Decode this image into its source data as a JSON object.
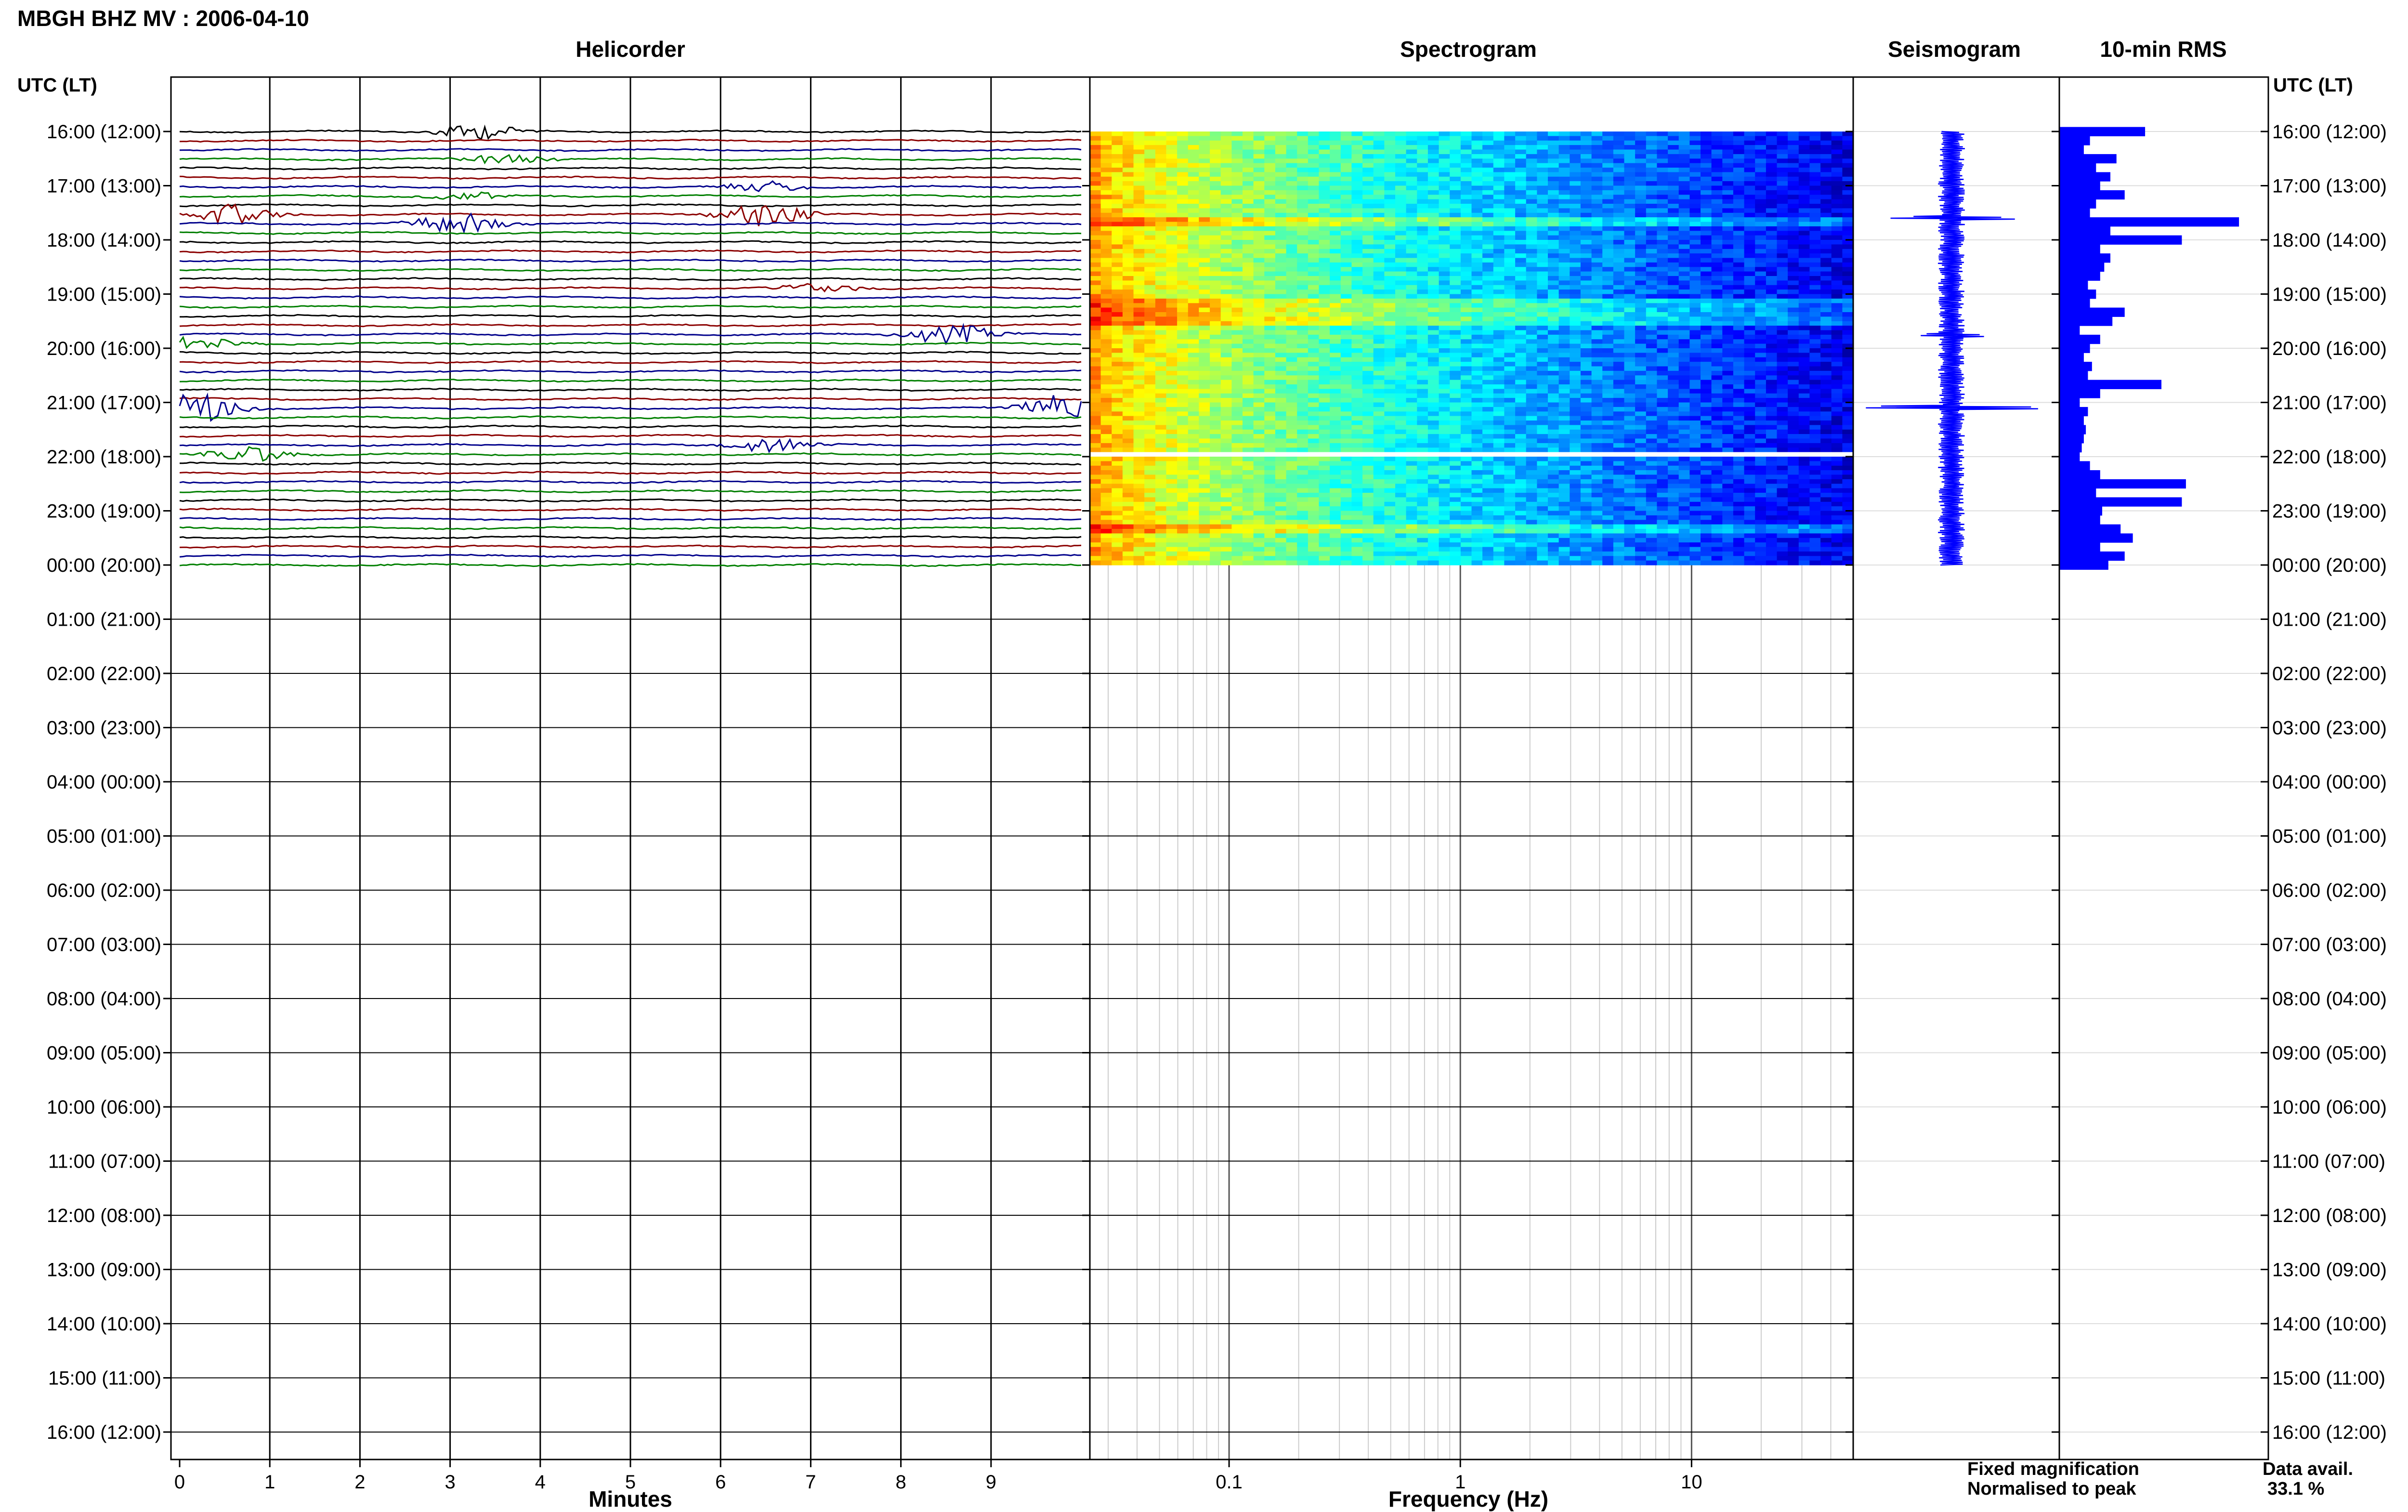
{
  "header": {
    "station_title": "MBGH BHZ MV : 2006-04-10",
    "left_axis_title": "UTC (LT)",
    "right_axis_title": "UTC (LT)"
  },
  "panels": {
    "helicorder_title": "Helicorder",
    "spectrogram_title": "Spectrogram",
    "seismogram_title": "Seismogram",
    "rms_title": "10-min RMS"
  },
  "footer": {
    "fixed_magnification": "Fixed magnification",
    "normalised_to_peak": "Normalised to peak",
    "data_avail_label": "Data avail.",
    "data_avail_value": "33.1 %"
  },
  "colors": {
    "series": [
      "#000000",
      "#8b0000",
      "#00008b",
      "#007f00"
    ],
    "rms_bar": "#0000ff",
    "seismogram_trace": "#0000ff",
    "fixed_magnification": "#0000ff",
    "normalised_to_peak": "#ff0000"
  },
  "chart_data": [
    {
      "type": "line",
      "panel": "helicorder",
      "xlabel": "Minutes",
      "x_ticks": [
        "0",
        "1",
        "2",
        "3",
        "4",
        "5",
        "6",
        "7",
        "8",
        "9"
      ],
      "xlim": [
        0,
        10
      ],
      "y_ticks": [
        "16:00 (12:00)",
        "17:00 (13:00)",
        "18:00 (14:00)",
        "19:00 (15:00)",
        "20:00 (16:00)",
        "21:00 (17:00)",
        "22:00 (18:00)",
        "23:00 (19:00)",
        "00:00 (20:00)",
        "01:00 (21:00)",
        "02:00 (22:00)",
        "03:00 (23:00)",
        "04:00 (00:00)",
        "05:00 (01:00)",
        "06:00 (02:00)",
        "07:00 (03:00)",
        "08:00 (04:00)",
        "09:00 (05:00)",
        "10:00 (06:00)",
        "11:00 (07:00)",
        "12:00 (08:00)",
        "13:00 (09:00)",
        "14:00 (10:00)",
        "15:00 (11:00)",
        "16:00 (12:00)"
      ],
      "trace_minutes": 10,
      "trace_count": 48,
      "events": [
        {
          "trace": 0,
          "minute": 3.3,
          "amp": 1.0
        },
        {
          "trace": 3,
          "minute": 3.6,
          "amp": 0.6
        },
        {
          "trace": 6,
          "minute": 6.5,
          "amp": 0.7
        },
        {
          "trace": 7,
          "minute": 3.2,
          "amp": 0.5
        },
        {
          "trace": 9,
          "minute": 0.6,
          "amp": 1.2
        },
        {
          "trace": 9,
          "minute": 6.5,
          "amp": 1.6
        },
        {
          "trace": 10,
          "minute": 3.1,
          "amp": 1.3
        },
        {
          "trace": 17,
          "minute": 7.1,
          "amp": 0.6
        },
        {
          "trace": 22,
          "minute": 8.6,
          "amp": 1.2
        },
        {
          "trace": 23,
          "minute": 0.2,
          "amp": 0.8
        },
        {
          "trace": 30,
          "minute": 0.2,
          "amp": 1.8
        },
        {
          "trace": 30,
          "minute": 9.8,
          "amp": 1.8
        },
        {
          "trace": 34,
          "minute": 6.6,
          "amp": 0.9
        },
        {
          "trace": 35,
          "minute": 0.8,
          "amp": 1.0
        }
      ]
    },
    {
      "type": "heatmap",
      "panel": "spectrogram",
      "xlabel": "Frequency (Hz)",
      "x_scale": "log",
      "xlim": [
        0.025,
        50
      ],
      "x_ticks": [
        "0.1",
        "1",
        "10"
      ],
      "rows_hours": 8,
      "colormap": "jet"
    },
    {
      "type": "line",
      "panel": "seismogram",
      "spikes": [
        {
          "row": 9,
          "amp": 0.6
        },
        {
          "row": 22,
          "amp": 0.35
        },
        {
          "row": 30,
          "amp": 0.8
        }
      ]
    },
    {
      "type": "bar",
      "panel": "10-min RMS",
      "orientation": "horizontal",
      "values": [
        0.42,
        0.15,
        0.12,
        0.28,
        0.18,
        0.25,
        0.2,
        0.32,
        0.18,
        0.15,
        0.88,
        0.25,
        0.6,
        0.2,
        0.25,
        0.22,
        0.2,
        0.14,
        0.18,
        0.15,
        0.32,
        0.26,
        0.1,
        0.2,
        0.15,
        0.12,
        0.16,
        0.14,
        0.5,
        0.2,
        0.1,
        0.14,
        0.12,
        0.13,
        0.12,
        0.11,
        0.1,
        0.15,
        0.2,
        0.62,
        0.18,
        0.6,
        0.21,
        0.2,
        0.3,
        0.36,
        0.2,
        0.32,
        0.24
      ]
    }
  ]
}
